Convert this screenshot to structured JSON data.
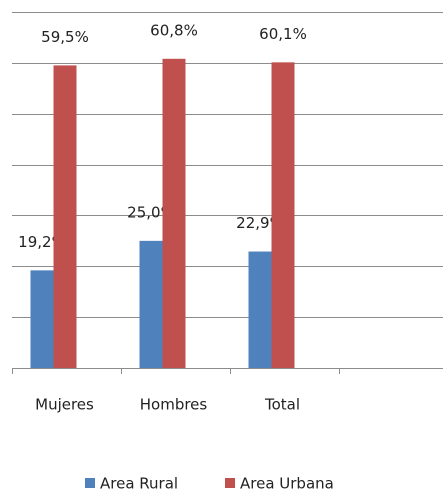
{
  "chart_data": {
    "type": "bar",
    "categories": [
      "Mujeres",
      "Hombres",
      "Total"
    ],
    "series": [
      {
        "name": "Area Rural",
        "color": "#4f81bd",
        "values": [
          19.2,
          25.0,
          22.9
        ],
        "value_labels": [
          "19,2%",
          "25,0%",
          "22,9%"
        ]
      },
      {
        "name": "Area Urbana",
        "color": "#c0504d",
        "values": [
          59.5,
          60.8,
          60.1
        ],
        "value_labels": [
          "59,5%",
          "60,8%",
          "60,1%"
        ]
      }
    ],
    "ylim": [
      0,
      70
    ],
    "yticks": [
      0,
      10,
      20,
      30,
      40,
      50,
      60,
      70
    ],
    "grid": true,
    "legend": "bottom"
  }
}
